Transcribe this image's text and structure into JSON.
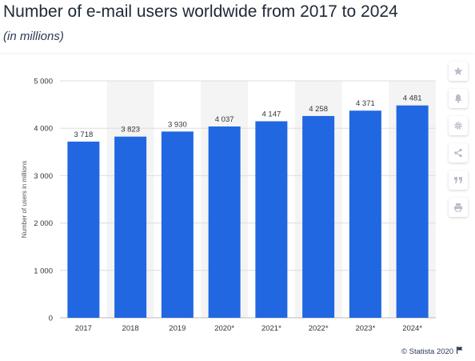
{
  "header": {
    "title": "Number of e-mail users worldwide from 2017 to 2024",
    "subtitle": "(in millions)"
  },
  "toolbar": {
    "icons": [
      "star-icon",
      "bell-icon",
      "gear-icon",
      "share-icon",
      "quote-icon",
      "print-icon"
    ]
  },
  "footer": {
    "credit": "© Statista 2020"
  },
  "colors": {
    "bar": "#2167e2",
    "band": "#f4f4f4",
    "grid": "#dddddd",
    "text": "#333333"
  },
  "chart_data": {
    "type": "bar",
    "title": "Number of e-mail users worldwide from 2017 to 2024",
    "subtitle": "(in millions)",
    "xlabel": "",
    "ylabel": "Number of users in millions",
    "categories": [
      "2017",
      "2018",
      "2019",
      "2020*",
      "2021*",
      "2022*",
      "2023*",
      "2024*"
    ],
    "values": [
      3718,
      3823,
      3930,
      4037,
      4147,
      4258,
      4371,
      4481
    ],
    "value_labels": [
      "3 718",
      "3 823",
      "3 930",
      "4 037",
      "4 147",
      "4 258",
      "4 371",
      "4 481"
    ],
    "yticks": [
      0,
      1000,
      2000,
      3000,
      4000,
      5000
    ],
    "ytick_labels": [
      "0",
      "1 000",
      "2 000",
      "3 000",
      "4 000",
      "5 000"
    ],
    "ylim": [
      0,
      5000
    ],
    "grid": true,
    "legend": false
  }
}
